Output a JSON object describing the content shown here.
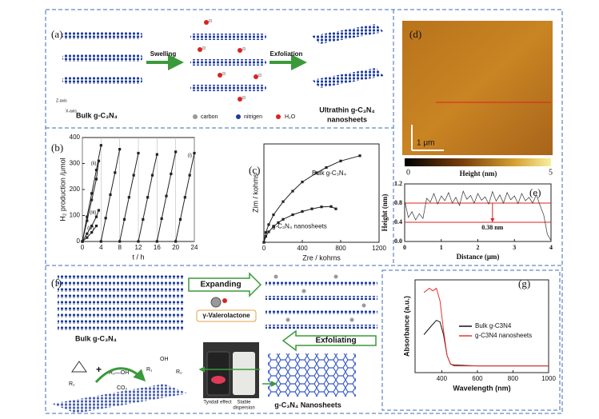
{
  "figure": {
    "a": {
      "label": "(a)",
      "swelling": "Swelling",
      "exfoliation": "Exfoliation",
      "bulk": "Bulk g-C₃N₄",
      "carbon": "carbon",
      "nitrogen": "nitrigen",
      "water": "H₂O",
      "product": [
        "Ultrathin g-C₃N₄",
        "nanosheets"
      ],
      "z_axis": "Z-axis",
      "x_axis": "X-axis"
    },
    "d": {
      "label": "(d)",
      "scale": "1 μm",
      "colorbar_min": "0",
      "colorbar_max": "5",
      "colorbar_label": "Height (nm)"
    },
    "f": {
      "label": "(f)",
      "expanding": "Expanding",
      "solvent": "γ-Valerolactone",
      "bulk": "Bulk g-C₃N₄",
      "exfoliating": "Exfoliating",
      "product": "g-C₃N₄ Nanosheets",
      "tyndall": "Tyndall effect",
      "dispersion": [
        "Stable",
        "dispersion"
      ],
      "r1": "R₁",
      "alcohol": "R₂—OH",
      "co2": "CO₂",
      "oh": "OH",
      "r1b": "R₁",
      "r2": "R₂"
    }
  },
  "chart_data": [
    {
      "type": "line",
      "label": "(b)",
      "xlabel": "t / h",
      "ylabel": "H₂ production /μmol",
      "xlim": [
        0,
        24
      ],
      "ylim": [
        0,
        400
      ],
      "xticks": [
        0,
        4,
        8,
        12,
        16,
        20,
        24
      ],
      "yticks": [
        0,
        100,
        200,
        300,
        400
      ],
      "xgrid": true,
      "markers": "square",
      "series": [
        {
          "name": "(i)",
          "color": "#222222",
          "x": [
            0,
            1,
            2,
            3,
            4,
            4,
            4,
            5,
            6,
            7,
            8,
            8,
            8,
            9,
            10,
            11,
            12,
            12,
            12,
            13,
            14,
            15,
            16,
            16,
            16,
            17,
            18,
            19,
            20,
            20,
            20,
            21,
            22,
            23,
            24
          ],
          "values": [
            0,
            95,
            185,
            275,
            370,
            null,
            0,
            90,
            180,
            265,
            355,
            null,
            0,
            85,
            170,
            255,
            340,
            null,
            0,
            85,
            170,
            255,
            335,
            null,
            0,
            88,
            175,
            260,
            345,
            null,
            0,
            85,
            170,
            255,
            340
          ]
        },
        {
          "name": "(ii)",
          "color": "#222222",
          "x": [
            0,
            1,
            2,
            3,
            3.5
          ],
          "values": [
            0,
            80,
            160,
            240,
            310
          ]
        },
        {
          "name": "(iii)",
          "color": "#222222",
          "x": [
            0,
            1,
            2,
            3,
            3.5
          ],
          "values": [
            0,
            30,
            60,
            95,
            120
          ]
        },
        {
          "name": "(iv)",
          "color": "#222222",
          "x": [
            0,
            1,
            2,
            3
          ],
          "values": [
            0,
            15,
            35,
            60
          ]
        }
      ]
    },
    {
      "type": "line",
      "label": "(c)",
      "xlabel": "Zre / kohms",
      "ylabel": "Zim / kohms",
      "xlim": [
        0,
        1200
      ],
      "ylim": [
        0,
        1500
      ],
      "xticks": [
        0,
        400,
        800,
        1200
      ],
      "markers": "square",
      "series": [
        {
          "name": "Bulk g-C₃N₄",
          "color": "#222222",
          "x": [
            0,
            20,
            50,
            100,
            200,
            300,
            400,
            550,
            650,
            800,
            1000
          ],
          "values": [
            0,
            150,
            270,
            420,
            620,
            780,
            920,
            1060,
            1140,
            1240,
            1320
          ]
        },
        {
          "name": "g-C₃N₄ nanosheets",
          "color": "#222222",
          "x": [
            0,
            20,
            50,
            100,
            150,
            200,
            300,
            400,
            500,
            600,
            700,
            750
          ],
          "values": [
            0,
            90,
            160,
            240,
            300,
            350,
            420,
            470,
            510,
            540,
            545,
            510
          ]
        }
      ]
    },
    {
      "type": "line",
      "label": "(e)",
      "xlabel": "Distance (μm)",
      "ylabel": "Height (nm)",
      "annotation": "0.38 nm",
      "xlim": [
        0,
        4
      ],
      "ylim": [
        0,
        1.2
      ],
      "xticks": [
        0,
        1,
        2,
        3,
        4
      ],
      "yticks": [
        {
          "value": 0,
          "label": "0.0"
        },
        0.4,
        0.8,
        1.2
      ],
      "reference_lines": [
        0.8,
        0.4
      ],
      "reference_color": "#e02020",
      "series": [
        {
          "color": "#333333",
          "x": [
            0,
            0.1,
            0.2,
            0.3,
            0.4,
            0.5,
            0.6,
            0.7,
            0.8,
            0.9,
            1,
            1.1,
            1.2,
            1.3,
            1.4,
            1.5,
            1.6,
            1.7,
            1.8,
            1.9,
            2,
            2.1,
            2.2,
            2.3,
            2.4,
            2.5,
            2.6,
            2.7,
            2.8,
            2.9,
            3,
            3.1,
            3.2,
            3.3,
            3.4,
            3.5,
            3.6,
            3.7,
            3.8,
            3.9,
            4
          ],
          "values": [
            0.85,
            0.5,
            0.62,
            0.45,
            0.58,
            0.48,
            0.9,
            0.82,
            1,
            0.78,
            0.95,
            0.85,
            1.02,
            0.8,
            0.92,
            0.75,
            1.05,
            0.88,
            0.96,
            0.8,
            1,
            0.86,
            0.93,
            0.78,
            1.04,
            0.84,
            0.97,
            0.8,
            1.02,
            0.87,
            0.95,
            0.79,
            1,
            0.85,
            0.92,
            0.8,
            0.98,
            0.75,
            0.55,
            0.15,
            0.02
          ]
        }
      ]
    },
    {
      "type": "line",
      "label": "(g)",
      "xlabel": "Wavelength (nm)",
      "ylabel": "Absorbance (a.u.)",
      "legend": "upper right",
      "xlim": [
        250,
        1000
      ],
      "ylim": [
        0,
        1.1
      ],
      "xticks": [
        400,
        600,
        800,
        1000
      ],
      "series": [
        {
          "name": "Bulk g-C3N4",
          "color": "#111111",
          "x": [
            300,
            340,
            370,
            390,
            410,
            430,
            450,
            470,
            600,
            800,
            1000
          ],
          "values": [
            0.45,
            0.55,
            0.62,
            0.6,
            0.45,
            0.2,
            0.1,
            0.09,
            0.08,
            0.08,
            0.08
          ]
        },
        {
          "name": "g-C3N4 nanosheets",
          "color": "#e8322f",
          "x": [
            300,
            330,
            350,
            370,
            390,
            410,
            430,
            450,
            470,
            600,
            800,
            1000
          ],
          "values": [
            0.95,
            1,
            0.97,
            1,
            0.85,
            0.5,
            0.2,
            0.1,
            0.08,
            0.08,
            0.08,
            0.08
          ]
        }
      ]
    }
  ]
}
